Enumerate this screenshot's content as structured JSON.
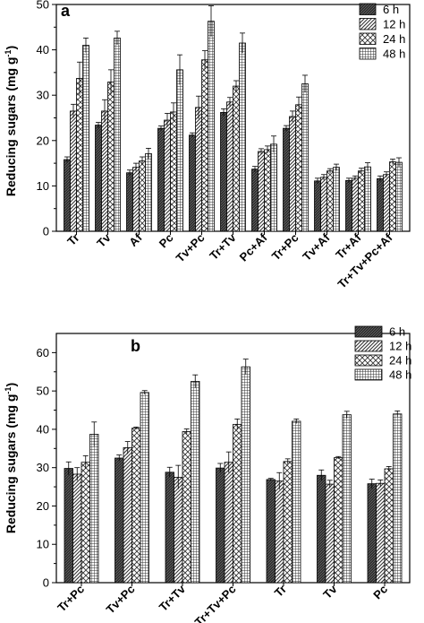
{
  "chart_data": [
    {
      "type": "bar",
      "panel_label": "a",
      "ylabel": "Reducing sugars (mg g",
      "ylabel_sup": "-1",
      "ylabel_close": ")",
      "ylim": [
        0,
        50
      ],
      "yticks": [
        0,
        10,
        20,
        30,
        40,
        50
      ],
      "legend_position": "top-right",
      "categories": [
        "Tr",
        "Tv",
        "Af",
        "Pc",
        "Tv+Pc",
        "Tr+Tv",
        "Pc+Af",
        "Tr+Pc",
        "Tv+Af",
        "Tr+Af",
        "Tr+Tv+Pc+Af"
      ],
      "series": [
        {
          "name": "6 h",
          "pattern": "dark",
          "values": [
            15.8,
            23.4,
            12.9,
            22.7,
            21.2,
            26.2,
            13.7,
            22.7,
            11.1,
            11.2,
            11.6
          ],
          "errors": [
            0.6,
            0.6,
            0.6,
            0.5,
            0.5,
            0.8,
            0.6,
            0.6,
            0.6,
            0.5,
            0.6
          ]
        },
        {
          "name": "12 h",
          "pattern": "hatch",
          "values": [
            26.5,
            26.5,
            14.1,
            24.5,
            27.3,
            28.5,
            17.6,
            25.3,
            11.9,
            11.7,
            12.5
          ],
          "errors": [
            1.5,
            2.5,
            0.9,
            1.5,
            2.5,
            1.0,
            0.6,
            1.2,
            0.6,
            0.5,
            0.6
          ]
        },
        {
          "name": "24 h",
          "pattern": "cross",
          "values": [
            33.7,
            32.9,
            15.5,
            26.3,
            37.8,
            32.0,
            18.0,
            27.9,
            13.3,
            13.3,
            15.3
          ],
          "errors": [
            3.6,
            2.7,
            0.9,
            2.0,
            2.0,
            1.2,
            0.8,
            1.7,
            0.5,
            0.6,
            0.6
          ]
        },
        {
          "name": "48 h",
          "pattern": "grid",
          "values": [
            41.0,
            42.6,
            17.1,
            35.6,
            46.3,
            41.5,
            19.2,
            32.5,
            14.1,
            14.2,
            15.2
          ],
          "errors": [
            1.6,
            1.5,
            1.2,
            3.3,
            3.4,
            2.2,
            1.8,
            1.9,
            0.7,
            0.9,
            1.0
          ]
        }
      ]
    },
    {
      "type": "bar",
      "panel_label": "b",
      "ylabel": "Reducing sugars (mg g",
      "ylabel_sup": "-1",
      "ylabel_close": ")",
      "ylim": [
        0,
        65
      ],
      "yticks": [
        0,
        10,
        20,
        30,
        40,
        50,
        60
      ],
      "legend_position": "top-right",
      "categories": [
        "Tr+Pc",
        "Tv+Pc",
        "Tr+Tv",
        "Tr+Tv+Pc",
        "Tr",
        "Tv",
        "Pc"
      ],
      "series": [
        {
          "name": "6 h",
          "pattern": "dark",
          "values": [
            29.8,
            32.5,
            28.8,
            29.9,
            26.9,
            28.0,
            25.8
          ],
          "errors": [
            1.7,
            0.8,
            1.3,
            1.2,
            0.3,
            1.4,
            1.2
          ]
        },
        {
          "name": "12 h",
          "pattern": "hatch",
          "values": [
            28.3,
            35.2,
            27.5,
            31.4,
            26.5,
            25.7,
            25.9
          ],
          "errors": [
            1.7,
            1.6,
            3.1,
            2.7,
            2.2,
            1.0,
            0.9
          ]
        },
        {
          "name": "24 h",
          "pattern": "cross",
          "values": [
            31.4,
            40.3,
            39.4,
            41.3,
            31.6,
            32.6,
            29.7
          ],
          "errors": [
            1.7,
            0.3,
            0.7,
            1.4,
            0.7,
            0.3,
            0.6
          ]
        },
        {
          "name": "48 h",
          "pattern": "grid",
          "values": [
            38.7,
            49.6,
            52.5,
            56.3,
            42.1,
            43.8,
            44.0
          ],
          "errors": [
            3.2,
            0.5,
            1.7,
            2.0,
            0.6,
            0.9,
            0.8
          ]
        }
      ]
    }
  ]
}
